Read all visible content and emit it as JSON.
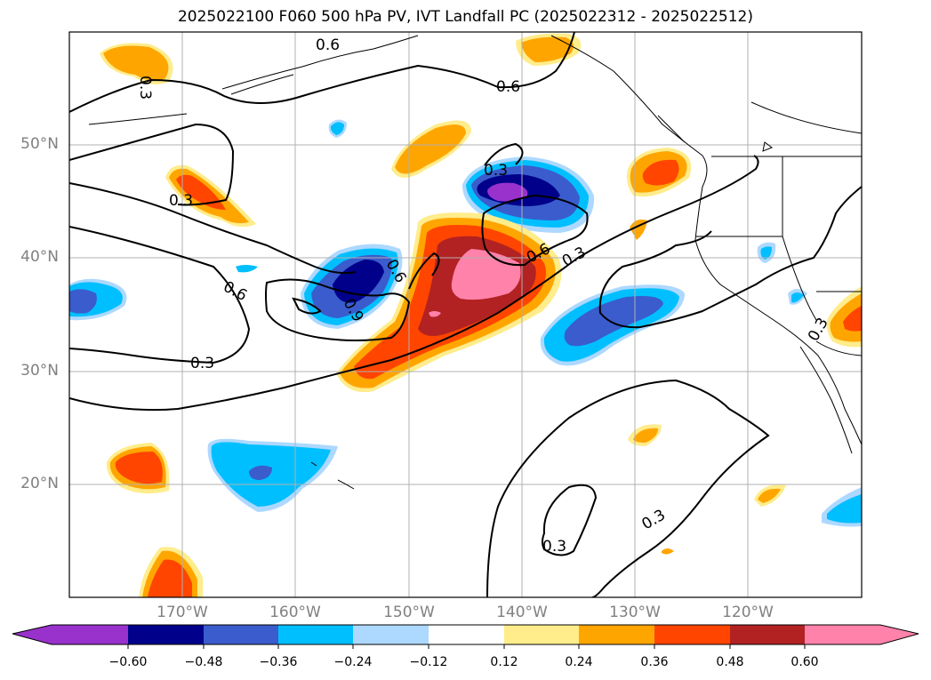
{
  "title": "2025022100 F060 500 hPa PV, IVT Landfall PC (2025022312 - 2025022512)",
  "map": {
    "lat_labels": [
      "50°N",
      "40°N",
      "30°N",
      "20°N"
    ],
    "lon_labels": [
      "170°W",
      "160°W",
      "150°W",
      "140°W",
      "130°W",
      "120°W"
    ],
    "contour_labels": [
      "0.6",
      "0.6",
      "0.3",
      "0.6",
      "0.3",
      "0.3",
      "0.6",
      "0.3",
      "0.9",
      "0.6",
      "0.3",
      "0.3",
      "0.3",
      "0.3"
    ],
    "grid": true,
    "projection": "PlateCarree"
  },
  "colorbar": {
    "ticks": [
      "−0.60",
      "−0.48",
      "−0.36",
      "−0.24",
      "−0.12",
      "0.12",
      "0.24",
      "0.36",
      "0.48",
      "0.60"
    ],
    "colors": [
      "#9932cc",
      "#00008b",
      "#3a5ccc",
      "#00bfff",
      "#add8ff",
      "#ffffff",
      "#ffec8b",
      "#ffa500",
      "#ff4500",
      "#b22222",
      "#ff82ab",
      "#ff82ab"
    ]
  }
}
